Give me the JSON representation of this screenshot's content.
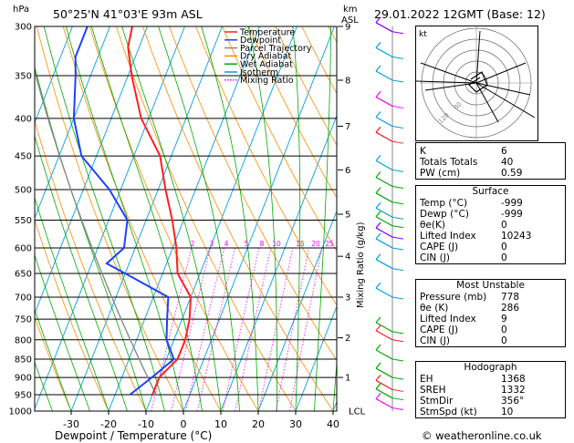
{
  "header": {
    "pressure_unit": "hPa",
    "location": "50°25'N  41°03'E  93m  ASL",
    "height_unit_top": "km",
    "height_unit_bottom": "ASL",
    "datetime": "29.01.2022  12GMT  (Base: 12)"
  },
  "footer": {
    "credit": "© weatheronline.co.uk"
  },
  "chart_data": [
    {
      "type": "line",
      "subtype": "skew-t log-p",
      "xlabel": "Dewpoint / Temperature (°C)",
      "ylabel": "hPa",
      "y2label": "Mixing Ratio (g/kg)",
      "xlim": [
        -35,
        40
      ],
      "ylim": [
        1000,
        300
      ],
      "pressure_ticks": [
        300,
        350,
        400,
        450,
        500,
        550,
        600,
        650,
        700,
        750,
        800,
        850,
        900,
        950,
        1000
      ],
      "pressure_tick_labels": [
        "300",
        "350",
        "400",
        "450",
        "500",
        "550",
        "600",
        "650",
        "700",
        "750",
        "800",
        "850",
        "900",
        "950",
        "1000"
      ],
      "temp_ticks": [
        -30,
        -20,
        -10,
        0,
        10,
        20,
        30,
        40
      ],
      "temp_tick_labels": [
        "-30",
        "-20",
        "-10",
        "0",
        "10",
        "20",
        "30",
        "40"
      ],
      "height_ticks": [
        {
          "label": "9",
          "p": 300
        },
        {
          "label": "8",
          "p": 355
        },
        {
          "label": "7",
          "p": 410
        },
        {
          "label": "6",
          "p": 470
        },
        {
          "label": "5",
          "p": 540
        },
        {
          "label": "4",
          "p": 616
        },
        {
          "label": "3",
          "p": 700
        },
        {
          "label": "2",
          "p": 795
        },
        {
          "label": "1",
          "p": 900
        },
        {
          "label": "LCL",
          "p": 1000
        }
      ],
      "mixing_ratio_labels": [
        {
          "label": "2",
          "x": 211
        },
        {
          "label": "3",
          "x": 232
        },
        {
          "label": "4",
          "x": 248
        },
        {
          "label": "5",
          "x": 270
        },
        {
          "label": "8",
          "x": 287
        },
        {
          "label": "10",
          "x": 303
        },
        {
          "label": "15",
          "x": 329
        },
        {
          "label": "20",
          "x": 346
        },
        {
          "label": "25",
          "x": 361
        }
      ],
      "legend": [
        {
          "name": "Temperature",
          "color": "#ff2020",
          "style": "solid"
        },
        {
          "name": "Dewpoint",
          "color": "#2040ff",
          "style": "solid"
        },
        {
          "name": "Parcel Trajectory",
          "color": "#888888",
          "style": "solid"
        },
        {
          "name": "Dry Adiabat",
          "color": "#ff8c00",
          "style": "solid"
        },
        {
          "name": "Wet Adiabat",
          "color": "#00aa00",
          "style": "solid"
        },
        {
          "name": "Isotherm",
          "color": "#00a0e0",
          "style": "solid"
        },
        {
          "name": "Mixing Ratio",
          "color": "#ff00ff",
          "style": "dotted"
        }
      ],
      "series": [
        {
          "name": "Temperature",
          "color": "#ff2020",
          "points": [
            {
              "p": 300,
              "t": -54
            },
            {
              "p": 320,
              "t": -53
            },
            {
              "p": 350,
              "t": -49
            },
            {
              "p": 400,
              "t": -42
            },
            {
              "p": 450,
              "t": -33
            },
            {
              "p": 500,
              "t": -28
            },
            {
              "p": 550,
              "t": -23
            },
            {
              "p": 600,
              "t": -19
            },
            {
              "p": 650,
              "t": -16
            },
            {
              "p": 700,
              "t": -10
            },
            {
              "p": 750,
              "t": -8
            },
            {
              "p": 800,
              "t": -7
            },
            {
              "p": 850,
              "t": -7
            },
            {
              "p": 900,
              "t": -10
            },
            {
              "p": 950,
              "t": -10
            }
          ]
        },
        {
          "name": "Dewpoint",
          "color": "#2040ff",
          "points": [
            {
              "p": 300,
              "t": -66
            },
            {
              "p": 330,
              "t": -66
            },
            {
              "p": 350,
              "t": -64
            },
            {
              "p": 400,
              "t": -60
            },
            {
              "p": 450,
              "t": -54
            },
            {
              "p": 500,
              "t": -43
            },
            {
              "p": 550,
              "t": -35
            },
            {
              "p": 600,
              "t": -33
            },
            {
              "p": 630,
              "t": -36
            },
            {
              "p": 650,
              "t": -30
            },
            {
              "p": 700,
              "t": -16
            },
            {
              "p": 750,
              "t": -14
            },
            {
              "p": 800,
              "t": -12
            },
            {
              "p": 850,
              "t": -8
            },
            {
              "p": 900,
              "t": -12
            },
            {
              "p": 950,
              "t": -16
            }
          ]
        }
      ]
    },
    {
      "type": "scatter",
      "subtype": "hodograph",
      "label": "kt",
      "ring_labels": [
        "80",
        "120"
      ]
    }
  ],
  "indices": {
    "basic": [
      {
        "key": "K",
        "value": "6"
      },
      {
        "key": "Totals Totals",
        "value": "40"
      },
      {
        "key": "PW (cm)",
        "value": "0.59"
      }
    ],
    "surface": {
      "title": "Surface",
      "rows": [
        {
          "key": "Temp (°C)",
          "value": "-999"
        },
        {
          "key": "Dewp (°C)",
          "value": "-999"
        },
        {
          "key": "θe(K)",
          "value": "0"
        },
        {
          "key": "Lifted Index",
          "value": "10243"
        },
        {
          "key": "CAPE (J)",
          "value": "0"
        },
        {
          "key": "CIN (J)",
          "value": "0"
        }
      ]
    },
    "most_unstable": {
      "title": "Most Unstable",
      "rows": [
        {
          "key": "Pressure (mb)",
          "value": "778"
        },
        {
          "key": "θe (K)",
          "value": "286"
        },
        {
          "key": "Lifted Index",
          "value": "9"
        },
        {
          "key": "CAPE (J)",
          "value": "0"
        },
        {
          "key": "CIN (J)",
          "value": "0"
        }
      ]
    },
    "hodograph": {
      "title": "Hodograph",
      "rows": [
        {
          "key": "EH",
          "value": "1368"
        },
        {
          "key": "SREH",
          "value": "1332"
        },
        {
          "key": "StmDir",
          "value": "356°"
        },
        {
          "key": "StmSpd (kt)",
          "value": "10"
        }
      ]
    }
  }
}
